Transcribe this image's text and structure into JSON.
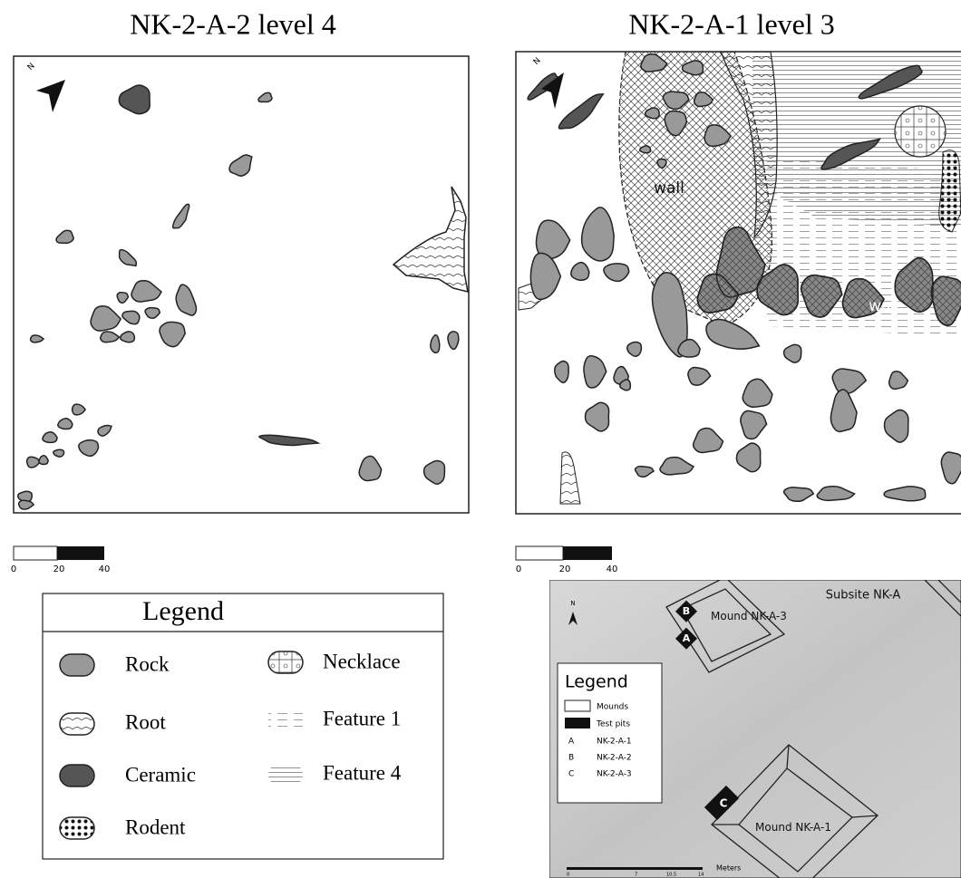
{
  "panels": [
    {
      "title": "NK-2-A-2  level 4",
      "scale_labels": [
        "0",
        "20",
        "40"
      ],
      "north": "N"
    },
    {
      "title": "NK-2-A-1  level 3",
      "scale_labels": [
        "0",
        "20",
        "40"
      ],
      "north": "N",
      "annotations": [
        "wall",
        "wall"
      ]
    }
  ],
  "legend": {
    "title": "Legend",
    "items": [
      "Rock",
      "Root",
      "Ceramic",
      "Rodent",
      "Necklace",
      "Feature 1",
      "Feature 4"
    ]
  },
  "site_map": {
    "subsite": "Subsite NK-A",
    "north": "N",
    "mounds": [
      "Mound NK-A-3",
      "Mound NK-A-1"
    ],
    "test_pits": [
      "B",
      "A",
      "C"
    ],
    "legend": {
      "title": "Legend",
      "items": [
        "Mounds",
        "Test pits"
      ],
      "codes": [
        {
          "letter": "A",
          "pit": "NK-2-A-1"
        },
        {
          "letter": "B",
          "pit": "NK-2-A-2"
        },
        {
          "letter": "C",
          "pit": "NK-2-A-3"
        }
      ]
    },
    "scale_unit": "Meters",
    "scale_labels": [
      "0",
      "7",
      "10.5",
      "14"
    ]
  }
}
